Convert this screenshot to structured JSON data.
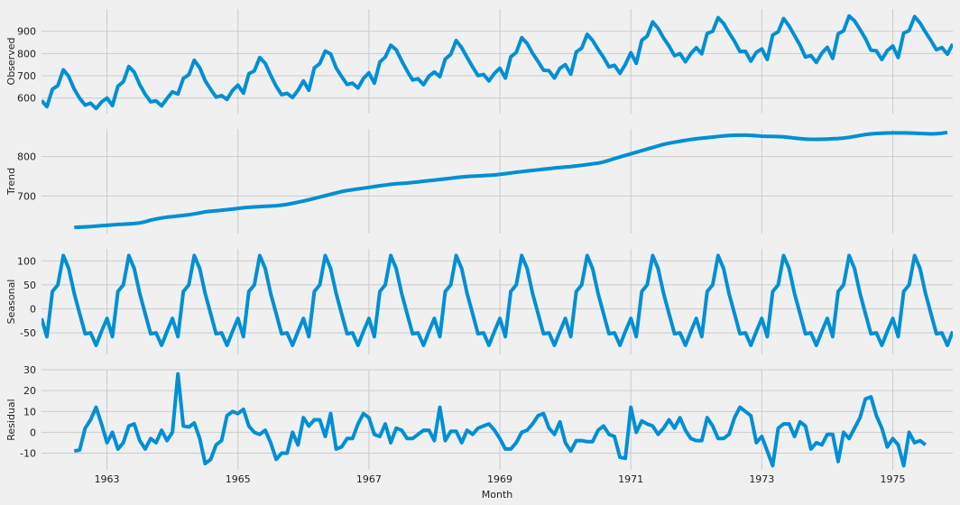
{
  "chart_data": {
    "type": "line",
    "xlabel": "Month",
    "x_ticks": [
      "1963",
      "1965",
      "1967",
      "1969",
      "1971",
      "1973",
      "1975"
    ],
    "x_range": [
      "1962-01",
      "1975-12"
    ],
    "grid": true,
    "line_color": "#008fd5",
    "background": "#f0f0f0",
    "grid_color": "#cbcbcb",
    "panels": [
      {
        "ylabel": "Observed",
        "yticks": [
          600,
          700,
          800,
          900
        ],
        "ylim": [
          530,
          1000
        ],
        "start": "1962-01",
        "values": [
          589,
          561,
          640,
          656,
          727,
          697,
          640,
          599,
          568,
          577,
          553,
          582,
          600,
          566,
          653,
          673,
          742,
          716,
          660,
          617,
          583,
          587,
          565,
          598,
          628,
          618,
          688,
          705,
          770,
          736,
          678,
          639,
          604,
          611,
          594,
          634,
          658,
          622,
          709,
          722,
          782,
          756,
          702,
          653,
          615,
          621,
          602,
          635,
          677,
          635,
          736,
          755,
          811,
          798,
          735,
          697,
          661,
          667,
          645,
          688,
          713,
          667,
          762,
          784,
          837,
          817,
          767,
          722,
          681,
          687,
          660,
          698,
          717,
          696,
          775,
          796,
          858,
          826,
          783,
          740,
          701,
          706,
          677,
          711,
          734,
          690,
          785,
          805,
          871,
          845,
          801,
          764,
          725,
          723,
          690,
          734,
          750,
          707,
          807,
          824,
          886,
          859,
          819,
          783,
          740,
          747,
          711,
          751,
          804,
          756,
          860,
          878,
          942,
          913,
          869,
          834,
          790,
          800,
          763,
          800,
          826,
          799,
          890,
          900,
          961,
          935,
          894,
          855,
          809,
          810,
          766,
          805,
          821,
          773,
          883,
          898,
          957,
          924,
          881,
          837,
          784,
          791,
          760,
          802,
          828,
          778,
          889,
          902,
          969,
          947,
          908,
          867,
          815,
          812,
          773,
          813,
          834,
          782,
          892,
          903,
          966,
          937,
          896,
          858,
          817,
          827,
          797,
          843
        ]
      },
      {
        "ylabel": "Trend",
        "yticks": [
          700,
          800
        ],
        "ylim": [
          605,
          870
        ],
        "start": "1962-07",
        "values": [
          620.8,
          621.3,
          622.0,
          622.8,
          623.8,
          624.8,
          625.9,
          627.0,
          628.0,
          628.8,
          629.5,
          630.3,
          632.0,
          635.0,
          639.0,
          642.0,
          644.5,
          646.5,
          648.0,
          649.5,
          651.0,
          652.7,
          654.8,
          657.3,
          660.0,
          661.5,
          662.8,
          664.2,
          665.5,
          667.0,
          668.7,
          670.3,
          671.5,
          672.5,
          673.3,
          674.0,
          674.7,
          675.5,
          677.0,
          679.0,
          681.5,
          684.5,
          687.5,
          690.5,
          693.8,
          697.5,
          701.0,
          704.5,
          708.0,
          711.5,
          714.0,
          716.0,
          718.0,
          720.0,
          722.0,
          724.0,
          726.0,
          728.0,
          729.8,
          731.0,
          732.0,
          733.0,
          734.5,
          736.0,
          737.5,
          739.0,
          740.5,
          742.0,
          743.5,
          745.0,
          746.8,
          748.3,
          749.5,
          750.3,
          751.0,
          751.7,
          752.5,
          753.5,
          755.0,
          756.7,
          758.5,
          760.3,
          762.0,
          763.5,
          765.0,
          766.5,
          768.0,
          769.5,
          771.0,
          772.3,
          773.5,
          774.8,
          776.3,
          778.0,
          779.8,
          781.5,
          783.5,
          786.5,
          790.5,
          794.8,
          799.0,
          803.0,
          807.0,
          811.0,
          815.0,
          819.0,
          823.0,
          827.0,
          831.0,
          834.0,
          836.5,
          839.0,
          841.3,
          843.3,
          845.0,
          846.5,
          848.0,
          849.5,
          851.0,
          852.5,
          853.5,
          854.0,
          854.3,
          854.3,
          853.8,
          852.8,
          851.8,
          851.3,
          851.0,
          850.5,
          849.8,
          848.5,
          847.0,
          845.5,
          844.3,
          843.8,
          843.8,
          844.0,
          844.5,
          845.0,
          845.8,
          847.0,
          848.8,
          851.0,
          853.5,
          855.8,
          857.5,
          858.5,
          859.3,
          859.8,
          860.0,
          860.0,
          860.0,
          859.8,
          859.3,
          858.5,
          857.8,
          857.5,
          858.0,
          859.3,
          861.0
        ]
      },
      {
        "ylabel": "Seasonal",
        "yticks": [
          -50,
          0,
          50,
          100
        ],
        "ylim": [
          -95,
          125
        ],
        "start": "1962-01",
        "pattern": [
          -20,
          -58,
          36,
          50,
          111,
          84,
          32,
          -10,
          -52,
          -50,
          -76,
          -47
        ],
        "values": [
          -20,
          -58,
          36,
          50,
          111,
          84,
          32,
          -10,
          -52,
          -50,
          -76,
          -47,
          -20,
          -58,
          36,
          50,
          111,
          84,
          32,
          -10,
          -52,
          -50,
          -76,
          -47,
          -20,
          -58,
          36,
          50,
          111,
          84,
          32,
          -10,
          -52,
          -50,
          -76,
          -47,
          -20,
          -58,
          36,
          50,
          111,
          84,
          32,
          -10,
          -52,
          -50,
          -76,
          -47,
          -20,
          -58,
          36,
          50,
          111,
          84,
          32,
          -10,
          -52,
          -50,
          -76,
          -47,
          -20,
          -58,
          36,
          50,
          111,
          84,
          32,
          -10,
          -52,
          -50,
          -76,
          -47,
          -20,
          -58,
          36,
          50,
          111,
          84,
          32,
          -10,
          -52,
          -50,
          -76,
          -47,
          -20,
          -58,
          36,
          50,
          111,
          84,
          32,
          -10,
          -52,
          -50,
          -76,
          -47,
          -20,
          -58,
          36,
          50,
          111,
          84,
          32,
          -10,
          -52,
          -50,
          -76,
          -47,
          -20,
          -58,
          36,
          50,
          111,
          84,
          32,
          -10,
          -52,
          -50,
          -76,
          -47,
          -20,
          -58,
          36,
          50,
          111,
          84,
          32,
          -10,
          -52,
          -50,
          -76,
          -47,
          -20,
          -58,
          36,
          50,
          111,
          84,
          32,
          -10,
          -52,
          -50,
          -76,
          -47,
          -20,
          -58,
          36,
          50,
          111,
          84,
          32,
          -10,
          -52,
          -50,
          -76,
          -47,
          -20,
          -58,
          36,
          50,
          111,
          84,
          32,
          -10,
          -52,
          -50,
          -76,
          -47
        ]
      },
      {
        "ylabel": "Residual",
        "yticks": [
          -10,
          0,
          10,
          20,
          30
        ],
        "ylim": [
          -18,
          30
        ],
        "start": "1962-07",
        "values": [
          -9,
          -8.5,
          2,
          6,
          12,
          4,
          -5,
          0,
          -8,
          -5,
          3,
          4,
          -4,
          -8,
          -3,
          -5,
          1,
          -4,
          0,
          28,
          3,
          2.5,
          4.5,
          -3,
          -15,
          -13,
          -6,
          -4,
          8,
          10,
          9,
          11,
          3,
          0,
          -1,
          1,
          -5,
          -13,
          -10,
          -10,
          0,
          -6,
          7,
          3,
          6,
          6,
          -2,
          9,
          -8,
          -7,
          -3,
          -3,
          4,
          9,
          7,
          -1,
          -2,
          4,
          -5,
          2,
          1,
          -3,
          -3,
          -1,
          1,
          1,
          -4,
          12,
          -4,
          0.5,
          0.5,
          -5,
          1,
          -1,
          2,
          3,
          4,
          1,
          -3,
          -8,
          -8,
          -5,
          0,
          1,
          4,
          8,
          9,
          2,
          -1,
          5,
          -5,
          -9,
          -4,
          -4,
          -4.5,
          -4.5,
          1,
          3,
          -1,
          -2,
          -12,
          -12.5,
          12,
          0,
          5.5,
          4,
          3,
          -1,
          2,
          6,
          2,
          7,
          1,
          -3,
          -4,
          -4,
          7,
          3,
          -3,
          -3,
          -1,
          7,
          12,
          10,
          8,
          -5,
          -2,
          -9,
          -16,
          2,
          4,
          4,
          -2,
          5,
          3,
          -8,
          -5,
          -6,
          -1,
          -1,
          -14,
          0,
          -3,
          2,
          7,
          16,
          17,
          8,
          2,
          -7,
          -3,
          -6,
          -16,
          0,
          -5,
          -4,
          -6
        ]
      }
    ]
  }
}
